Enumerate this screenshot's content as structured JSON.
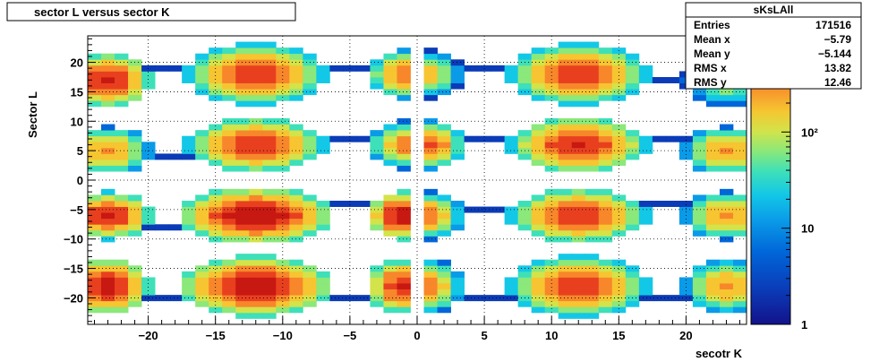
{
  "chart_data": {
    "type": "heatmap",
    "title": "sector L versus sector K",
    "xlabel": "secotr K",
    "ylabel": "Sector L",
    "xlim": [
      -24.5,
      24.5
    ],
    "ylim": [
      -24.5,
      24.5
    ],
    "bin_width": 1,
    "x_ticks": [
      -20,
      -15,
      -10,
      -5,
      0,
      5,
      10,
      15,
      20
    ],
    "x_tick_labels": [
      "−20",
      "−15",
      "−10",
      "−5",
      "0",
      "5",
      "10",
      "15",
      "20"
    ],
    "y_ticks": [
      -20,
      -15,
      -10,
      -5,
      0,
      5,
      10,
      15,
      20
    ],
    "y_tick_labels": [
      "−20",
      "−15",
      "−10",
      "−5",
      "0",
      "5",
      "10",
      "15",
      "20"
    ],
    "grid": true,
    "z_scale": "log",
    "zlim": [
      1,
      1000
    ],
    "z_ticks": [
      1,
      10,
      100
    ],
    "z_tick_labels": [
      "1",
      "10",
      "10²"
    ],
    "empty_rows": [
      -1,
      0,
      1
    ],
    "empty_cols": [
      0
    ],
    "clusters": [
      {
        "x": -23,
        "y": 17,
        "peak": 600,
        "sx": 1.6,
        "sy": 2.3
      },
      {
        "x": -23,
        "y": 5,
        "peak": 200,
        "sx": 1.6,
        "sy": 2.0
      },
      {
        "x": -23,
        "y": -6,
        "peak": 600,
        "sx": 1.6,
        "sy": 2.0
      },
      {
        "x": -23,
        "y": -18,
        "peak": 700,
        "sx": 1.6,
        "sy": 2.3
      },
      {
        "x": -12,
        "y": 18,
        "peak": 500,
        "sx": 2.5,
        "sy": 2.5
      },
      {
        "x": -12,
        "y": 6,
        "peak": 500,
        "sx": 2.5,
        "sy": 2.3
      },
      {
        "x": -12,
        "y": -6,
        "peak": 900,
        "sx": 2.8,
        "sy": 2.3
      },
      {
        "x": -12,
        "y": -18,
        "peak": 900,
        "sx": 2.7,
        "sy": 2.5
      },
      {
        "x": -1,
        "y": 18,
        "peak": 300,
        "sx": 1.3,
        "sy": 2.0
      },
      {
        "x": -1,
        "y": 6,
        "peak": 200,
        "sx": 1.3,
        "sy": 2.0
      },
      {
        "x": -1,
        "y": -6,
        "peak": 700,
        "sx": 1.4,
        "sy": 2.0
      },
      {
        "x": -1,
        "y": -18,
        "peak": 600,
        "sx": 1.4,
        "sy": 2.2
      },
      {
        "x": 1,
        "y": 18,
        "peak": 90,
        "sx": 1.2,
        "sy": 2.0
      },
      {
        "x": 1,
        "y": 6,
        "peak": 350,
        "sx": 1.2,
        "sy": 2.0
      },
      {
        "x": 1,
        "y": -6,
        "peak": 200,
        "sx": 1.2,
        "sy": 2.0
      },
      {
        "x": 1,
        "y": -18,
        "peak": 200,
        "sx": 1.2,
        "sy": 2.2
      },
      {
        "x": 12,
        "y": 18,
        "peak": 500,
        "sx": 2.5,
        "sy": 2.5
      },
      {
        "x": 12,
        "y": 6,
        "peak": 600,
        "sx": 2.5,
        "sy": 2.3
      },
      {
        "x": 12,
        "y": -6,
        "peak": 500,
        "sx": 2.5,
        "sy": 2.3
      },
      {
        "x": 12,
        "y": -18,
        "peak": 500,
        "sx": 2.5,
        "sy": 2.5
      },
      {
        "x": 23,
        "y": 17,
        "peak": 80,
        "sx": 1.6,
        "sy": 2.3
      },
      {
        "x": 23,
        "y": 5,
        "peak": 200,
        "sx": 1.6,
        "sy": 2.0
      },
      {
        "x": 23,
        "y": -6,
        "peak": 200,
        "sx": 1.6,
        "sy": 2.0
      },
      {
        "x": 23,
        "y": -18,
        "peak": 200,
        "sx": 1.6,
        "sy": 2.3
      }
    ],
    "bridges": [
      {
        "x1": -21,
        "x2": -15,
        "y": 19,
        "value": 2
      },
      {
        "x1": -21,
        "x2": -15,
        "y": 4,
        "value": 2
      },
      {
        "x1": -21,
        "x2": -15,
        "y": -8,
        "value": 2
      },
      {
        "x1": -21,
        "x2": -15,
        "y": -20,
        "value": 2
      },
      {
        "x1": -9,
        "x2": -3,
        "y": 19,
        "value": 2
      },
      {
        "x1": -9,
        "x2": -3,
        "y": 7,
        "value": 2
      },
      {
        "x1": -9,
        "x2": -3,
        "y": -4,
        "value": 2
      },
      {
        "x1": -9,
        "x2": -3,
        "y": -20,
        "value": 2
      },
      {
        "x1": 3,
        "x2": 9,
        "y": 19,
        "value": 2
      },
      {
        "x1": 3,
        "x2": 9,
        "y": 7,
        "value": 2
      },
      {
        "x1": 3,
        "x2": 9,
        "y": -5,
        "value": 2
      },
      {
        "x1": 3,
        "x2": 9,
        "y": -20,
        "value": 2
      },
      {
        "x1": 15,
        "x2": 21,
        "y": 17,
        "value": 2
      },
      {
        "x1": 15,
        "x2": 21,
        "y": 7,
        "value": 2
      },
      {
        "x1": 15,
        "x2": 21,
        "y": -4,
        "value": 2
      },
      {
        "x1": 15,
        "x2": 21,
        "y": -20,
        "value": 2
      }
    ],
    "palette": [
      "#1a1a8c",
      "#0b3bb7",
      "#0066d9",
      "#0a9be8",
      "#13c8e6",
      "#3ee0b9",
      "#8be87a",
      "#d3e34a",
      "#f6c531",
      "#f7872a",
      "#e8401f",
      "#c81812"
    ]
  },
  "stats_box": {
    "title": "sKsLAll",
    "rows": [
      {
        "label": "Entries",
        "value": "171516"
      },
      {
        "label": "Mean x",
        "value": "−5.79"
      },
      {
        "label": "Mean y",
        "value": "−5.144"
      },
      {
        "label": "RMS x",
        "value": "13.82"
      },
      {
        "label": "RMS y",
        "value": "12.46"
      }
    ]
  }
}
